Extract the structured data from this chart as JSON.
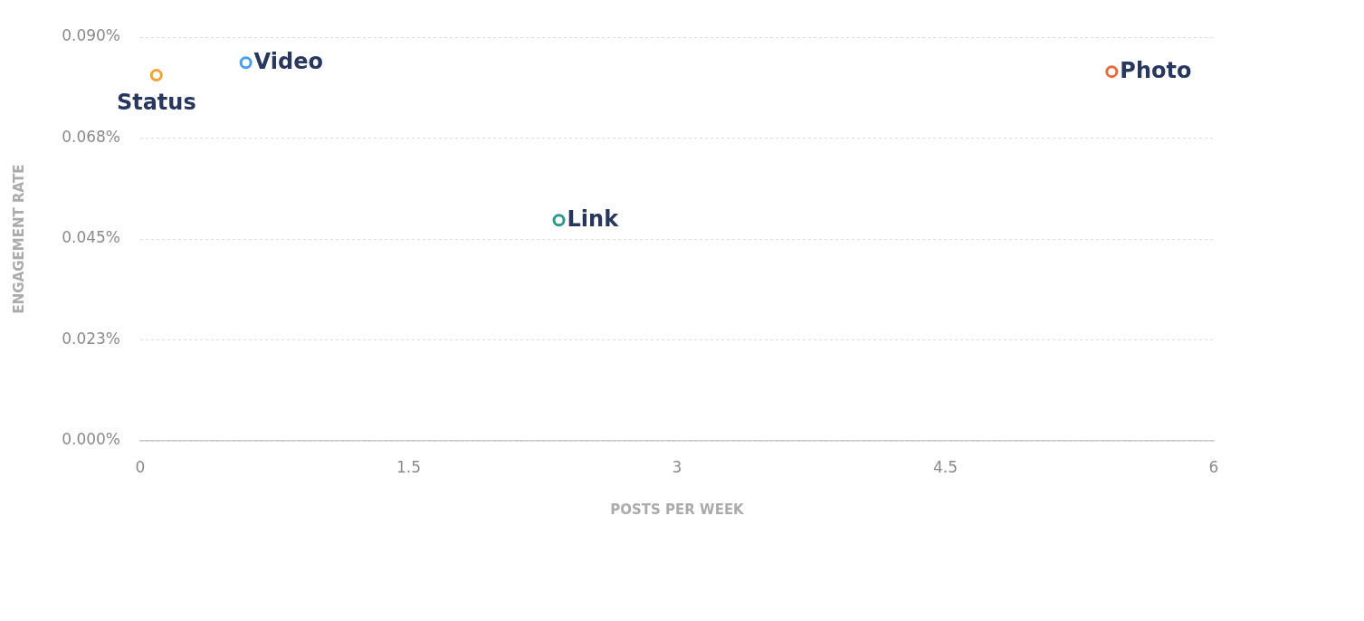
{
  "chart_data": {
    "type": "scatter",
    "xlabel": "POSTS PER WEEK",
    "ylabel": "ENGAGEMENT RATE",
    "series": [
      {
        "name": "Status",
        "color": "#f0a431",
        "x": [
          0.09
        ],
        "values": [
          0.0815
        ]
      },
      {
        "name": "Video",
        "color": "#4a9ff0",
        "x": [
          0.59
        ],
        "values": [
          0.0843
        ]
      },
      {
        "name": "Link",
        "color": "#2c9a8a",
        "x": [
          2.34
        ],
        "values": [
          0.0492
        ]
      },
      {
        "name": "Photo",
        "color": "#e8693f",
        "x": [
          5.43
        ],
        "values": [
          0.0823
        ]
      }
    ],
    "xlim": [
      0,
      6
    ],
    "xticks": [
      0,
      1.5,
      3,
      4.5,
      6
    ],
    "ylim": [
      0,
      0.09
    ],
    "yticks": [
      {
        "value": 0,
        "label": "0.000%"
      },
      {
        "value": 0.0225,
        "label": "0.023%"
      },
      {
        "value": 0.045,
        "label": "0.045%"
      },
      {
        "value": 0.0675,
        "label": "0.068%"
      },
      {
        "value": 0.09,
        "label": "0.090%"
      }
    ],
    "grid": "y",
    "marker": "circle",
    "legend": false
  }
}
